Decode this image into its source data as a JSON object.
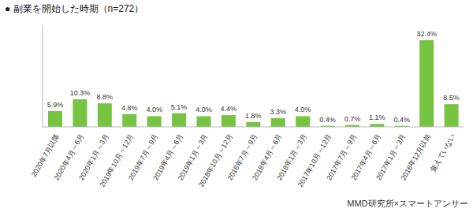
{
  "chart_data": {
    "type": "bar",
    "title": "● 副業を開始した時期（n=272）",
    "categories": [
      "2020年7月以降",
      "2020年4月～6月",
      "2020年1月～3月",
      "2019年10月～12月",
      "2019年7月～9月",
      "2019年4月～6月",
      "2019年1月～3月",
      "2018年10月～12月",
      "2018年7月～9月",
      "2018年4月～6月",
      "2018年1月～3月",
      "2017年10月～12月",
      "2017年7月～9月",
      "2017年4月～6月",
      "2017年1月～3月",
      "2016年12月以前",
      "覚えていない"
    ],
    "values": [
      5.9,
      10.3,
      8.8,
      4.8,
      4.0,
      5.1,
      4.0,
      4.4,
      1.8,
      3.3,
      4.0,
      0.4,
      0.7,
      1.1,
      0.4,
      32.4,
      8.5
    ],
    "value_labels": [
      "5.9%",
      "10.3%",
      "8.8%",
      "4.8%",
      "4.0%",
      "5.1%",
      "4.0%",
      "4.4%",
      "1.8%",
      "3.3%",
      "4.0%",
      "0.4%",
      "0.7%",
      "1.1%",
      "0.4%",
      "32.4%",
      "8.5%"
    ],
    "color": "#76c442",
    "ylim": [
      0,
      38
    ],
    "grid": false,
    "data_labels": true,
    "tick_labels": "x",
    "annotations": [
      "MMD研究所×スマートアンサー"
    ]
  }
}
